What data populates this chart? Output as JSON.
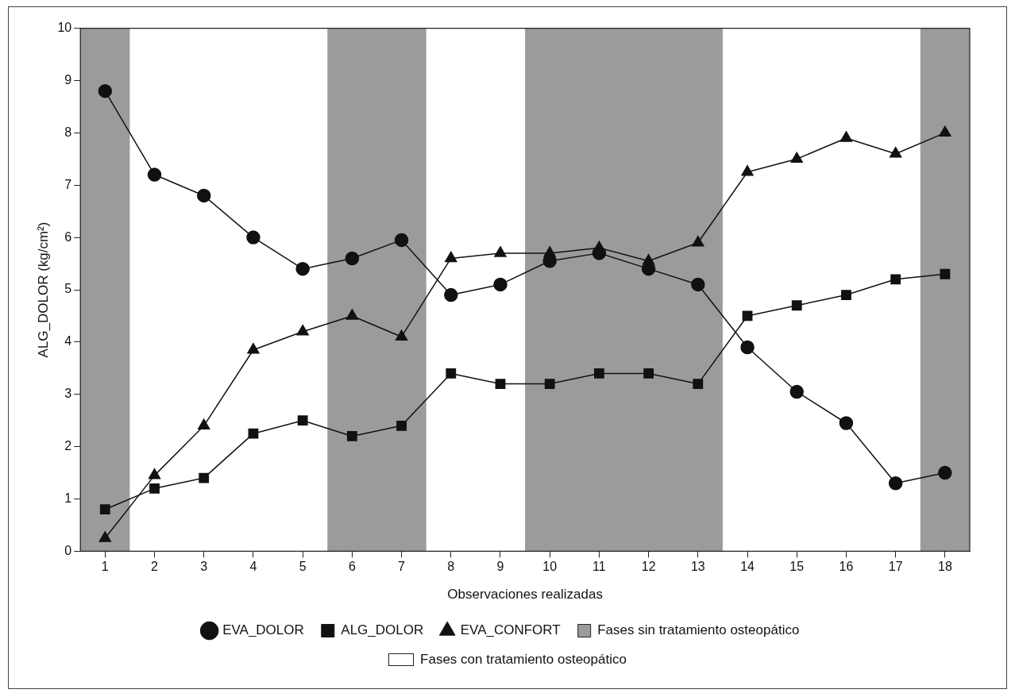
{
  "chart_data": {
    "type": "line",
    "xlabel": "Observaciones realizadas",
    "ylabel": "ALG_DOLOR (kg/cm²)",
    "x": [
      1,
      2,
      3,
      4,
      5,
      6,
      7,
      8,
      9,
      10,
      11,
      12,
      13,
      14,
      15,
      16,
      17,
      18
    ],
    "xlim": [
      0.5,
      18.5
    ],
    "xticks": [
      1,
      2,
      3,
      4,
      5,
      6,
      7,
      8,
      9,
      10,
      11,
      12,
      13,
      14,
      15,
      16,
      17,
      18
    ],
    "ylim": [
      0,
      10
    ],
    "yticks": [
      0,
      1,
      2,
      3,
      4,
      5,
      6,
      7,
      8,
      9,
      10
    ],
    "grid": false,
    "legend": "bottom",
    "line_style": "solid",
    "series": [
      {
        "name": "EVA_DOLOR",
        "color": "#111111",
        "marker": "circle",
        "values": [
          8.8,
          7.2,
          6.8,
          6.0,
          5.4,
          5.6,
          5.95,
          4.9,
          5.1,
          5.55,
          5.7,
          5.4,
          5.1,
          3.9,
          3.05,
          2.45,
          1.3,
          1.5
        ]
      },
      {
        "name": "ALG_DOLOR",
        "color": "#111111",
        "marker": "square",
        "values": [
          0.8,
          1.2,
          1.4,
          2.25,
          2.5,
          2.2,
          2.4,
          3.4,
          3.2,
          3.2,
          3.4,
          3.4,
          3.2,
          4.5,
          4.7,
          4.9,
          5.2,
          5.3
        ]
      },
      {
        "name": "EVA_CONFORT",
        "color": "#111111",
        "marker": "triangle",
        "values": [
          0.25,
          1.45,
          2.4,
          3.85,
          4.2,
          4.5,
          4.1,
          5.6,
          5.7,
          5.7,
          5.8,
          5.55,
          5.9,
          7.25,
          7.5,
          7.9,
          7.6,
          8.0
        ]
      }
    ],
    "bands": [
      {
        "axis": "x",
        "from": 0.5,
        "to": 1.5,
        "label": "Fases sin tratamiento osteopático",
        "color": "#9b9b9b"
      },
      {
        "axis": "x",
        "from": 5.5,
        "to": 7.5,
        "color": "#9b9b9b"
      },
      {
        "axis": "x",
        "from": 9.5,
        "to": 13.5,
        "color": "#9b9b9b"
      },
      {
        "axis": "x",
        "from": 17.5,
        "to": 18.5,
        "color": "#9b9b9b"
      }
    ],
    "annotations": [
      "Fases con tratamiento osteopático"
    ]
  }
}
